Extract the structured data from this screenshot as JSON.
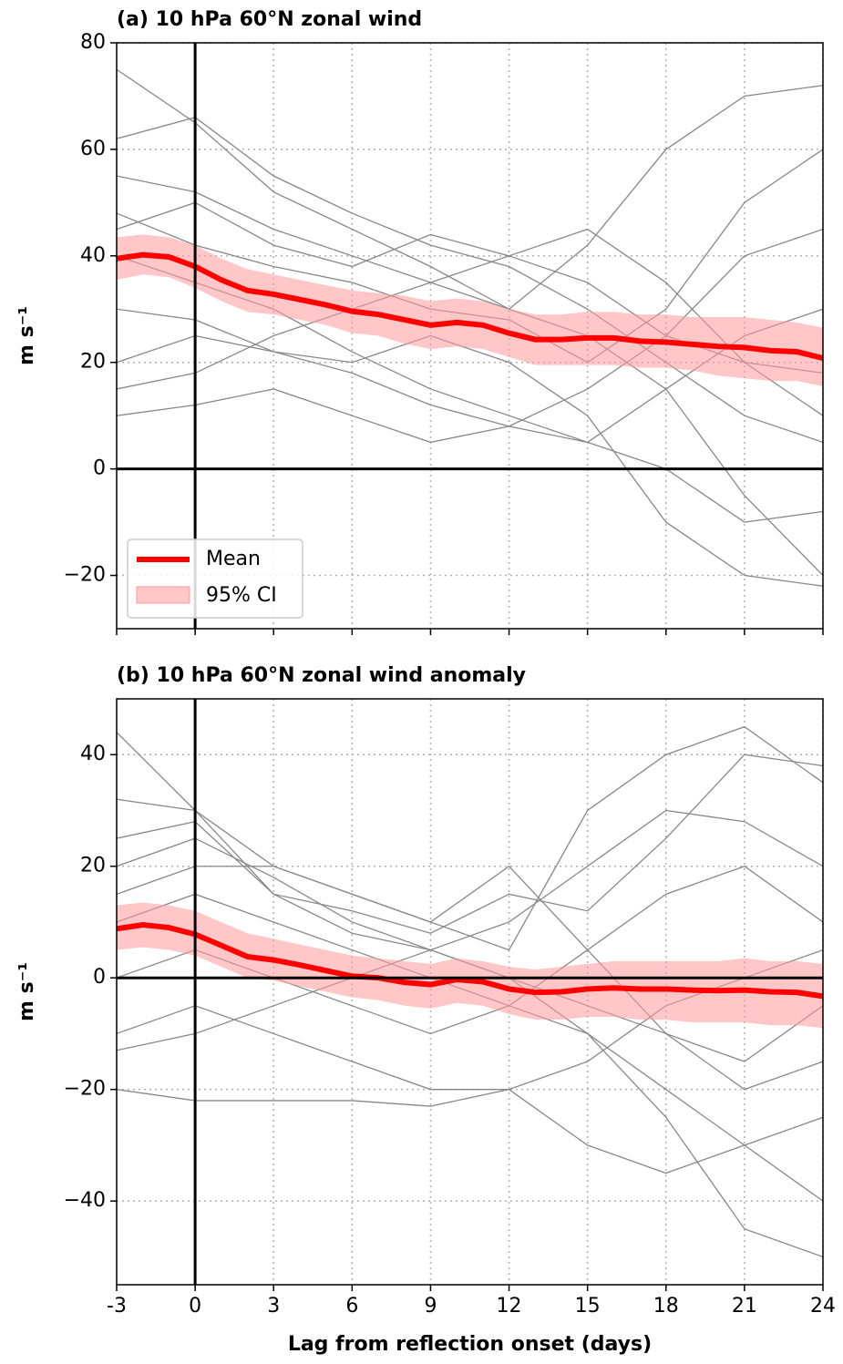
{
  "chart_data": [
    {
      "type": "line",
      "title": "(a) 10 hPa 60°N zonal wind",
      "ylabel": "m s⁻¹",
      "x": [
        -3,
        -2,
        -1,
        0,
        1,
        2,
        3,
        4,
        5,
        6,
        7,
        8,
        9,
        10,
        11,
        12,
        13,
        14,
        15,
        16,
        17,
        18,
        19,
        20,
        21,
        22,
        23,
        24
      ],
      "xlim": [
        -3,
        24
      ],
      "xticks": [
        -3,
        0,
        3,
        6,
        9,
        12,
        15,
        18,
        21,
        24
      ],
      "show_xticklabels": false,
      "ylim": [
        -30,
        80
      ],
      "yticks": [
        {
          "value": -20,
          "label": "−20"
        },
        0,
        20,
        40,
        60,
        80
      ],
      "grid": true,
      "hline": 0,
      "vline": 0,
      "legend": "lower left",
      "series": [
        {
          "color": "#888888",
          "x": [
            -3,
            0,
            3,
            6,
            9,
            12,
            15,
            18,
            21,
            24
          ],
          "values": [
            75,
            65,
            52,
            45,
            38,
            30,
            42,
            60,
            70,
            72
          ]
        },
        {
          "color": "#888888",
          "x": [
            -3,
            0,
            3,
            6,
            9,
            12,
            15,
            18,
            21,
            24
          ],
          "values": [
            62,
            66,
            55,
            48,
            42,
            38,
            30,
            20,
            10,
            5
          ]
        },
        {
          "color": "#888888",
          "x": [
            -3,
            0,
            3,
            6,
            9,
            12,
            15,
            18,
            21,
            24
          ],
          "values": [
            55,
            52,
            45,
            40,
            35,
            30,
            25,
            15,
            -5,
            -20
          ]
        },
        {
          "color": "#888888",
          "x": [
            -3,
            0,
            3,
            6,
            9,
            12,
            15,
            18,
            21,
            24
          ],
          "values": [
            48,
            42,
            38,
            35,
            30,
            28,
            20,
            30,
            50,
            60
          ]
        },
        {
          "color": "#888888",
          "x": [
            -3,
            0,
            3,
            6,
            9,
            12,
            15,
            18,
            21,
            24
          ],
          "values": [
            40,
            35,
            30,
            22,
            15,
            10,
            5,
            0,
            -10,
            -8
          ]
        },
        {
          "color": "#888888",
          "x": [
            -3,
            0,
            3,
            6,
            9,
            12,
            15,
            18,
            21,
            24
          ],
          "values": [
            30,
            28,
            22,
            18,
            12,
            8,
            5,
            15,
            25,
            30
          ]
        },
        {
          "color": "#888888",
          "x": [
            -3,
            0,
            3,
            6,
            9,
            12,
            15,
            18,
            21,
            24
          ],
          "values": [
            20,
            25,
            22,
            20,
            25,
            20,
            10,
            -10,
            -20,
            -22
          ]
        },
        {
          "color": "#888888",
          "x": [
            -3,
            0,
            3,
            6,
            9,
            12,
            15,
            18,
            21,
            24
          ],
          "values": [
            10,
            12,
            15,
            10,
            5,
            8,
            15,
            25,
            40,
            45
          ]
        },
        {
          "color": "#888888",
          "x": [
            -3,
            0,
            3,
            6,
            9,
            12,
            15,
            18,
            21,
            24
          ],
          "values": [
            45,
            50,
            42,
            38,
            44,
            40,
            35,
            25,
            20,
            18
          ]
        },
        {
          "color": "#888888",
          "x": [
            -3,
            0,
            3,
            6,
            9,
            12,
            15,
            18,
            21,
            24
          ],
          "values": [
            15,
            18,
            25,
            30,
            35,
            40,
            45,
            35,
            20,
            10
          ]
        },
        {
          "name": "Mean",
          "color": "#ff0000",
          "values": [
            39.5,
            40.2,
            39.8,
            38.0,
            35.5,
            33.5,
            32.8,
            31.8,
            30.8,
            29.6,
            29.0,
            28.0,
            27.0,
            27.5,
            27.0,
            25.5,
            24.3,
            24.3,
            24.6,
            24.6,
            24.0,
            23.8,
            23.4,
            23.0,
            22.8,
            22.2,
            22.0,
            20.8
          ]
        }
      ],
      "band": {
        "name": "95% CI",
        "color": "#ff9999",
        "upper": [
          43.5,
          44,
          43.5,
          42,
          39.5,
          37.5,
          36.5,
          35.5,
          34.5,
          33.5,
          33,
          32.5,
          31.5,
          32,
          31.5,
          30,
          29,
          29,
          29.5,
          29.5,
          29,
          29,
          28.5,
          28.5,
          28.5,
          28,
          27.5,
          26.5
        ],
        "lower": [
          35.5,
          36.5,
          36,
          34,
          31.5,
          29.5,
          29,
          28,
          27,
          25.5,
          25,
          23.5,
          22.5,
          23,
          22.5,
          21,
          19.5,
          19.5,
          19.5,
          19.5,
          19,
          19,
          18.5,
          17.5,
          17,
          16.5,
          16.5,
          15.5
        ]
      }
    },
    {
      "type": "line",
      "title": "(b) 10 hPa 60°N zonal wind anomaly",
      "ylabel": "m s⁻¹",
      "xlabel": "Lag from reflection onset (days)",
      "x": [
        -3,
        -2,
        -1,
        0,
        1,
        2,
        3,
        4,
        5,
        6,
        7,
        8,
        9,
        10,
        11,
        12,
        13,
        14,
        15,
        16,
        17,
        18,
        19,
        20,
        21,
        22,
        23,
        24
      ],
      "xlim": [
        -3,
        24
      ],
      "xticks": [
        -3,
        0,
        3,
        6,
        9,
        12,
        15,
        18,
        21,
        24
      ],
      "show_xticklabels": true,
      "ylim": [
        -55,
        50
      ],
      "yticks": [
        {
          "value": -40,
          "label": "−40"
        },
        {
          "value": -20,
          "label": "−20"
        },
        0,
        20,
        40
      ],
      "grid": true,
      "hline": 0,
      "vline": 0,
      "series": [
        {
          "color": "#888888",
          "x": [
            -3,
            0,
            3,
            6,
            9,
            12,
            15,
            18,
            21,
            24
          ],
          "values": [
            44,
            30,
            20,
            15,
            10,
            5,
            30,
            40,
            45,
            35
          ]
        },
        {
          "color": "#888888",
          "x": [
            -3,
            0,
            3,
            6,
            9,
            12,
            15,
            18,
            21,
            24
          ],
          "values": [
            32,
            30,
            15,
            8,
            5,
            0,
            -10,
            -20,
            -30,
            -40
          ]
        },
        {
          "color": "#888888",
          "x": [
            -3,
            0,
            3,
            6,
            9,
            12,
            15,
            18,
            21,
            24
          ],
          "values": [
            20,
            25,
            18,
            10,
            5,
            10,
            20,
            30,
            28,
            20
          ]
        },
        {
          "color": "#888888",
          "x": [
            -3,
            0,
            3,
            6,
            9,
            12,
            15,
            18,
            21,
            24
          ],
          "values": [
            10,
            15,
            10,
            5,
            0,
            -5,
            -10,
            -25,
            -45,
            -50
          ]
        },
        {
          "color": "#888888",
          "x": [
            -3,
            0,
            3,
            6,
            9,
            12,
            15,
            18,
            21,
            24
          ],
          "values": [
            0,
            5,
            0,
            -5,
            -10,
            -5,
            5,
            15,
            20,
            10
          ]
        },
        {
          "color": "#888888",
          "x": [
            -3,
            0,
            3,
            6,
            9,
            12,
            15,
            18,
            21,
            24
          ],
          "values": [
            -10,
            -5,
            -10,
            -15,
            -20,
            -20,
            -30,
            -35,
            -30,
            -25
          ]
        },
        {
          "color": "#888888",
          "x": [
            -3,
            0,
            3,
            6,
            9,
            12,
            15,
            18,
            21,
            24
          ],
          "values": [
            -20,
            -22,
            -22,
            -22,
            -23,
            -20,
            -15,
            -5,
            0,
            5
          ]
        },
        {
          "color": "#888888",
          "x": [
            -3,
            0,
            3,
            6,
            9,
            12,
            15,
            18,
            21,
            24
          ],
          "values": [
            15,
            20,
            20,
            15,
            10,
            20,
            5,
            -10,
            -20,
            -15
          ]
        },
        {
          "color": "#888888",
          "x": [
            -3,
            0,
            3,
            6,
            9,
            12,
            15,
            18,
            21,
            24
          ],
          "values": [
            -13,
            -10,
            -5,
            0,
            5,
            0,
            -5,
            -10,
            -15,
            -5
          ]
        },
        {
          "color": "#888888",
          "x": [
            -3,
            0,
            3,
            6,
            9,
            12,
            15,
            18,
            21,
            24
          ],
          "values": [
            25,
            28,
            15,
            12,
            8,
            15,
            12,
            25,
            40,
            38
          ]
        },
        {
          "color": "#ff0000",
          "values": [
            8.8,
            9.5,
            9.0,
            7.8,
            5.8,
            3.8,
            3.2,
            2.3,
            1.3,
            0.3,
            0.0,
            -0.8,
            -1.2,
            -0.3,
            -0.7,
            -2.0,
            -2.6,
            -2.5,
            -2.0,
            -1.8,
            -2.0,
            -2.0,
            -2.2,
            -2.3,
            -2.2,
            -2.5,
            -2.6,
            -3.3
          ]
        }
      ],
      "band": {
        "color": "#ff9999",
        "upper": [
          13,
          13.5,
          13,
          12,
          10,
          8,
          7,
          6,
          5,
          4,
          3.5,
          3,
          2.5,
          3.5,
          3,
          2,
          1.5,
          2,
          2.5,
          3,
          3,
          3,
          3,
          3,
          3.5,
          3,
          3,
          2.5
        ],
        "lower": [
          5,
          5.5,
          5,
          4,
          2,
          0,
          -0.5,
          -1.5,
          -2.5,
          -3.5,
          -4,
          -5,
          -5.5,
          -4.5,
          -5,
          -6.5,
          -7.5,
          -7.5,
          -7,
          -7,
          -7.5,
          -7.5,
          -8,
          -8,
          -8,
          -8.5,
          -8.5,
          -9
        ]
      }
    }
  ]
}
